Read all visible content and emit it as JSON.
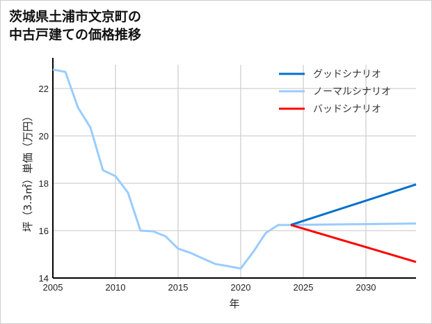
{
  "chart_data": {
    "type": "line",
    "title_lines": [
      "茨城県土浦市文京町の",
      "中古戸建ての価格推移"
    ],
    "xlabel": "年",
    "ylabel": "坪（3.3㎡）単価（万円）",
    "xlim": [
      2005,
      2034
    ],
    "ylim": [
      14,
      23
    ],
    "xticks": [
      2005,
      2010,
      2015,
      2020,
      2025,
      2030
    ],
    "yticks": [
      14,
      16,
      18,
      20,
      22
    ],
    "grid": true,
    "legend_position": "top-right",
    "series": [
      {
        "name": "グッドシナリオ",
        "color": "#0070cc",
        "x": [
          2024,
          2034
        ],
        "values": [
          16.24,
          17.95
        ]
      },
      {
        "name": "ノーマルシナリオ",
        "color": "#99ccff",
        "x": [
          2005,
          2006,
          2007,
          2008,
          2009,
          2010,
          2011,
          2012,
          2013,
          2014,
          2015,
          2016,
          2017,
          2018,
          2019,
          2020,
          2021,
          2022,
          2023,
          2024,
          2034
        ],
        "values": [
          22.8,
          22.7,
          21.2,
          20.35,
          18.55,
          18.3,
          17.6,
          16.0,
          15.97,
          15.76,
          15.24,
          15.06,
          14.82,
          14.59,
          14.5,
          14.4,
          15.1,
          15.9,
          16.24,
          16.24,
          16.3
        ]
      },
      {
        "name": "バッドシナリオ",
        "color": "#ff0000",
        "x": [
          2024,
          2034
        ],
        "values": [
          16.24,
          14.68
        ]
      }
    ]
  }
}
